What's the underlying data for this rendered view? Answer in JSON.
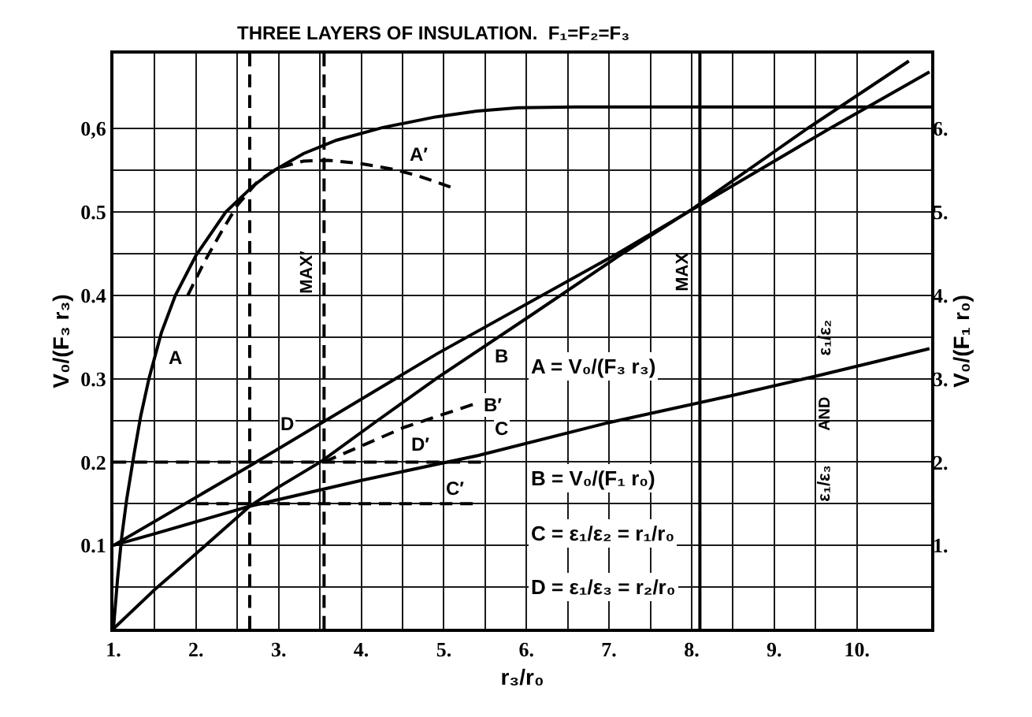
{
  "chart_data": {
    "type": "line",
    "title": "THREE LAYERS OF INSULATION.  F₁=F₂=F₃",
    "xlabel": "r₃/r₀",
    "ylabel": "V₀/(F₃ r₃)",
    "y2label": "V₀/(F₁ r₀)",
    "xlim": [
      1,
      10.9
    ],
    "ylim": [
      0,
      0.69
    ],
    "y2lim": [
      0,
      6.9
    ],
    "xticks": [
      {
        "value": 1,
        "label": "1."
      },
      {
        "value": 1.5,
        "label": null
      },
      {
        "value": 2,
        "label": "2."
      },
      {
        "value": 2.5,
        "label": null
      },
      {
        "value": 3,
        "label": "3."
      },
      {
        "value": 3.5,
        "label": null
      },
      {
        "value": 4,
        "label": "4."
      },
      {
        "value": 4.5,
        "label": null
      },
      {
        "value": 5,
        "label": "5."
      },
      {
        "value": 5.5,
        "label": null
      },
      {
        "value": 6,
        "label": "6."
      },
      {
        "value": 6.5,
        "label": null
      },
      {
        "value": 7,
        "label": "7."
      },
      {
        "value": 7.5,
        "label": null
      },
      {
        "value": 8,
        "label": "8."
      },
      {
        "value": 8.5,
        "label": null
      },
      {
        "value": 9,
        "label": "9."
      },
      {
        "value": 9.5,
        "label": null
      },
      {
        "value": 10,
        "label": "10."
      }
    ],
    "yticks": [
      {
        "value": 0.05,
        "label": null
      },
      0.1,
      {
        "value": 0.15,
        "label": null
      },
      0.2,
      {
        "value": 0.25,
        "label": null
      },
      0.3,
      {
        "value": 0.35,
        "label": null
      },
      0.4,
      {
        "value": 0.45,
        "label": null
      },
      0.5,
      {
        "value": 0.55,
        "label": null
      },
      {
        "value": 0.6,
        "label": "0,6"
      }
    ],
    "y2ticks": [
      {
        "value": 1,
        "label": "1."
      },
      {
        "value": 2,
        "label": "2."
      },
      {
        "value": 3,
        "label": "3."
      },
      {
        "value": 4,
        "label": "4."
      },
      {
        "value": 5,
        "label": "5."
      },
      {
        "value": 6,
        "label": "6."
      }
    ],
    "grid": true,
    "series": [
      {
        "name": "A",
        "color": "#000000",
        "x": [
          1,
          1.05,
          1.1,
          1.16,
          1.25,
          1.33,
          1.43,
          1.58,
          1.75,
          2.0,
          2.36,
          2.7,
          2.93,
          3.3,
          3.7,
          4.25,
          4.9,
          5.4,
          5.9,
          6.6,
          10.9
        ],
        "values": [
          0,
          0.06,
          0.11,
          0.155,
          0.21,
          0.255,
          0.3,
          0.355,
          0.4,
          0.448,
          0.5,
          0.532,
          0.549,
          0.57,
          0.586,
          0.601,
          0.614,
          0.621,
          0.625,
          0.626,
          0.626
        ]
      },
      {
        "name": "A′",
        "color": "#000000",
        "line_style": "dashed",
        "x": [
          1.9,
          2.1,
          2.3,
          2.5,
          2.75,
          3.0,
          3.3,
          3.6,
          4.0,
          4.4,
          4.7,
          5.08
        ],
        "values": [
          0.4,
          0.44,
          0.475,
          0.508,
          0.537,
          0.553,
          0.561,
          0.562,
          0.558,
          0.551,
          0.543,
          0.53
        ]
      },
      {
        "name": "B",
        "color": "#000000",
        "axis": "y2",
        "x": [
          1,
          1.5,
          2.0,
          2.65,
          3.0,
          3.52,
          4.2,
          4.92,
          6.04,
          7.1,
          8.0,
          9.4,
          10.63
        ],
        "values": [
          0,
          0.47,
          0.9,
          1.47,
          1.7,
          2.01,
          2.5,
          3.01,
          3.75,
          4.46,
          5.03,
          6.0,
          6.81
        ]
      },
      {
        "name": "B′",
        "color": "#000000",
        "axis": "y2",
        "line_style": "dashed",
        "x": [
          3.55,
          4.53,
          5.35
        ],
        "values": [
          2.0,
          2.42,
          2.69
        ]
      },
      {
        "name": "C",
        "color": "#000000",
        "axis": "y2",
        "x": [
          1,
          1.5,
          2.65,
          4.0,
          5.42,
          6.98,
          8.5,
          9.5,
          10.88
        ],
        "values": [
          1.0,
          1.14,
          1.47,
          1.78,
          2.08,
          2.47,
          2.8,
          3.03,
          3.36
        ]
      },
      {
        "name": "C′",
        "color": "#000000",
        "axis": "y2",
        "line_style": "dashed",
        "x": [
          2.0,
          5.35
        ],
        "values": [
          1.5,
          1.5
        ]
      },
      {
        "name": "D",
        "color": "#000000",
        "axis": "y2",
        "x": [
          1,
          2.68,
          4.92,
          7.1,
          9.67,
          10.88
        ],
        "values": [
          1.0,
          1.97,
          3.3,
          4.5,
          6.0,
          6.68
        ]
      },
      {
        "name": "D′",
        "color": "#000000",
        "axis": "y2",
        "line_style": "dashed",
        "x": [
          1.0,
          5.45
        ],
        "values": [
          2.0,
          2.0
        ]
      }
    ],
    "ref_lines": [
      {
        "axis": "x",
        "value": 2.65,
        "line_style": "dashed",
        "color": "#000000"
      },
      {
        "axis": "x",
        "value": 3.55,
        "label": "MAX′",
        "line_style": "dashed",
        "color": "#000000"
      },
      {
        "axis": "x",
        "value": 8.1,
        "label": "MAX",
        "line_style": "solid",
        "color": "#000000"
      }
    ],
    "annotations": [
      "A = V₀/(F₃ r₃)",
      "B = V₀/(F₁ r₀)",
      "C = ε₁/ε₂ = r₁/r₀",
      "D = ε₁/ε₃ = r₂/r₀",
      "ε₁/ε₂",
      "AND",
      "ε₁/ε₃"
    ]
  }
}
